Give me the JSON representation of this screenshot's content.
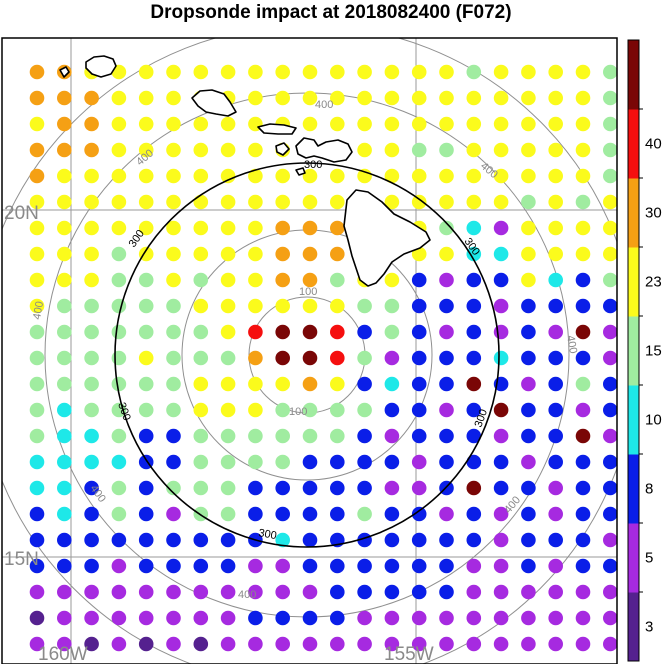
{
  "title": "Dropsonde impact at 2018082400 (F072)",
  "map": {
    "lat_labels": [
      "20N",
      "15N"
    ],
    "lon_labels": [
      "160W",
      "155W"
    ],
    "grid_color": "#9a9a9a",
    "label_color": "#8a8a8a"
  },
  "range_rings": {
    "gray": [
      "100",
      "400"
    ],
    "black": "300"
  },
  "colorbar": {
    "levels": [
      "3",
      "5",
      "8",
      "10",
      "15",
      "23",
      "30",
      "40"
    ],
    "colors": [
      "#55218f",
      "#a62ae0",
      "#0a1ee8",
      "#1ee8e8",
      "#a0eca0",
      "#fbfb1c",
      "#f5a014",
      "#f50f0f",
      "#7a0606"
    ]
  },
  "dots": {
    "rows": [
      "OOYYYYYYYYYYYYYYGYYYYG",
      "OOOYYYYYYYYYYYYYYYYYYG",
      "YOOYYYYYYYYYYYYYYYYYYG",
      "OOOYYYYYYYYYYYGGYYYYYG",
      "OYYYYYYYYYYYYYYYYYYYYG",
      "YYYYYYYYYYYYYYYYYYGYGY",
      "YYYYYYYYYOOOYOYGCPYYYY",
      "YYYGYYYYYOOOYYYYCCYYYY",
      "YYYGGYGYYOOGYYBPBBYCBG",
      "YGGGGGYYYYYYGGBBBPBBBB",
      "GGGGGGGYRMMRBGBPBPBPMP",
      "GGGGYGGGOMMRGPBBBCBBBP",
      "GGGGGGYYYYOYBCBBMBPBGB",
      "GCGGGGYYYGGGGBBPBMBBPB",
      "GCCGBBGGGGGGBPBBBPBBMP",
      "CCCCBBGGGGBBBBPBBBPBBB",
      "CCBGBGGGBBBBBPPBMBBPBB",
      "BCBGBPGGBBBBGBBPBPBPBB",
      "BBBBBBBBBCBBBBBBBPBBBP",
      "BBBPBBBBPPBBBBBBPPBPBB",
      "PPPPPPPPPPPBBBBBPPPPPP",
      "MPPPPPPPBBBBPPPPPPPPPP",
      "PPMPMPMPPPPPPPPPPPPPPP"
    ]
  },
  "islands": [
    "Kauai",
    "Oahu",
    "Molokai",
    "Maui",
    "Hawaii"
  ]
}
